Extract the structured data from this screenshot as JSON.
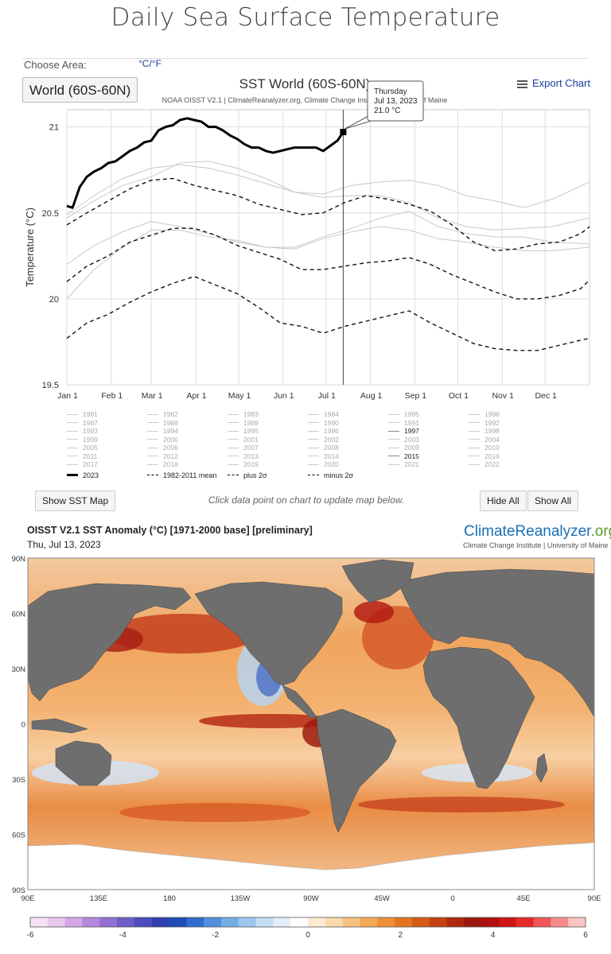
{
  "page": {
    "title": "Daily Sea Surface Temperature"
  },
  "controls": {
    "choose_area_label": "Choose Area:",
    "unit_toggle": "°C/°F",
    "area_button": "World (60S-60N)",
    "export_label": "Export Chart",
    "show_map_button": "Show SST Map",
    "hint": "Click data point on chart to update map below.",
    "hide_all_button": "Hide All",
    "show_all_button": "Show All"
  },
  "colors": {
    "link": "#1a3d9e",
    "line_2023": "#000000",
    "line_other": "#c8c8c8",
    "grid": "#dddddd"
  },
  "chart_data": {
    "type": "line",
    "title": "SST World (60S-60N)",
    "subtitle": "NOAA OISST V2.1 | ClimateReanalyzer.org, Climate Change Institute, University of Maine",
    "ylabel": "Temperature (°C)",
    "xlabel": "",
    "ylim": [
      19.5,
      21.1
    ],
    "yticks": [
      "19.5",
      "20",
      "20.5",
      "21"
    ],
    "ytick_values": [
      19.5,
      20,
      20.5,
      21
    ],
    "x_unit": "day of year",
    "xlim": [
      1,
      366
    ],
    "xticks": [
      "Jan 1",
      "Feb 1",
      "Mar 1",
      "Apr 1",
      "May 1",
      "Jun 1",
      "Jul 1",
      "Aug 1",
      "Sep 1",
      "Oct 1",
      "Nov 1",
      "Dec 1"
    ],
    "xtick_days": [
      1,
      32,
      60,
      91,
      121,
      152,
      182,
      213,
      244,
      274,
      305,
      335
    ],
    "grid": true,
    "tooltip": {
      "day": "Thursday",
      "date": "Jul 13, 2023",
      "value": "21.0 °C",
      "x": 194,
      "y": 20.97
    },
    "series": [
      {
        "name": "2023",
        "style": "solid-bold",
        "x": [
          1,
          5,
          10,
          15,
          20,
          25,
          30,
          35,
          40,
          45,
          50,
          55,
          60,
          65,
          70,
          75,
          80,
          85,
          90,
          95,
          100,
          105,
          110,
          115,
          120,
          125,
          130,
          135,
          140,
          145,
          150,
          155,
          160,
          165,
          170,
          175,
          180,
          185,
          190,
          194
        ],
        "y": [
          20.54,
          20.53,
          20.65,
          20.71,
          20.74,
          20.76,
          20.79,
          20.8,
          20.83,
          20.86,
          20.88,
          20.91,
          20.92,
          20.98,
          21.0,
          21.01,
          21.04,
          21.05,
          21.04,
          21.03,
          21.0,
          21.0,
          20.98,
          20.95,
          20.93,
          20.9,
          20.88,
          20.88,
          20.86,
          20.85,
          20.86,
          20.87,
          20.88,
          20.88,
          20.88,
          20.88,
          20.86,
          20.89,
          20.92,
          20.97
        ]
      },
      {
        "name": "1982-2011 mean",
        "style": "dashed",
        "x": [
          1,
          15,
          30,
          45,
          60,
          75,
          90,
          105,
          120,
          135,
          150,
          165,
          180,
          195,
          210,
          225,
          240,
          255,
          270,
          285,
          300,
          315,
          330,
          345,
          360,
          366
        ],
        "y": [
          20.1,
          20.19,
          20.25,
          20.33,
          20.37,
          20.41,
          20.41,
          20.37,
          20.31,
          20.27,
          20.23,
          20.17,
          20.17,
          20.19,
          20.21,
          20.22,
          20.24,
          20.2,
          20.14,
          20.09,
          20.04,
          20.0,
          20.0,
          20.02,
          20.06,
          20.11
        ]
      },
      {
        "name": "plus 2σ",
        "style": "dashed",
        "x": [
          1,
          15,
          30,
          45,
          60,
          75,
          90,
          105,
          120,
          135,
          150,
          165,
          180,
          195,
          210,
          225,
          240,
          255,
          270,
          285,
          300,
          315,
          330,
          345,
          360,
          366
        ],
        "y": [
          20.43,
          20.5,
          20.57,
          20.64,
          20.69,
          20.7,
          20.66,
          20.63,
          20.6,
          20.55,
          20.52,
          20.49,
          20.5,
          20.56,
          20.6,
          20.58,
          20.55,
          20.51,
          20.43,
          20.33,
          20.28,
          20.29,
          20.32,
          20.33,
          20.38,
          20.42
        ]
      },
      {
        "name": "minus 2σ",
        "style": "dashed",
        "x": [
          1,
          15,
          30,
          45,
          60,
          75,
          90,
          105,
          120,
          135,
          150,
          165,
          180,
          195,
          210,
          225,
          240,
          255,
          270,
          285,
          300,
          315,
          330,
          345,
          360,
          366
        ],
        "y": [
          19.77,
          19.86,
          19.91,
          19.98,
          20.04,
          20.09,
          20.13,
          20.08,
          20.03,
          19.95,
          19.86,
          19.84,
          19.8,
          19.84,
          19.87,
          19.9,
          19.93,
          19.86,
          19.8,
          19.74,
          19.71,
          19.7,
          19.7,
          19.73,
          19.76,
          19.77
        ]
      },
      {
        "name": "1997",
        "style": "thin-gray",
        "x": [
          1,
          20,
          40,
          60,
          80,
          100,
          120,
          140,
          160,
          180,
          200,
          220,
          240,
          260,
          280,
          300,
          320,
          340,
          366
        ],
        "y": [
          20.0,
          20.17,
          20.3,
          20.4,
          20.4,
          20.36,
          20.34,
          20.3,
          20.29,
          20.35,
          20.39,
          20.42,
          20.4,
          20.35,
          20.33,
          20.3,
          20.28,
          20.28,
          20.3
        ]
      },
      {
        "name": "2015",
        "style": "thin-gray",
        "x": [
          1,
          20,
          40,
          60,
          80,
          100,
          120,
          140,
          160,
          180,
          200,
          220,
          240,
          260,
          280,
          300,
          320,
          340,
          366
        ],
        "y": [
          20.2,
          20.31,
          20.39,
          20.45,
          20.42,
          20.38,
          20.33,
          20.3,
          20.3,
          20.36,
          20.41,
          20.47,
          20.51,
          20.42,
          20.38,
          20.36,
          20.36,
          20.33,
          20.32
        ]
      },
      {
        "name": "2016",
        "style": "thin-gray",
        "x": [
          1,
          20,
          40,
          60,
          80,
          100,
          120,
          140,
          160,
          180,
          200,
          220,
          240,
          260,
          280,
          300,
          320,
          340,
          366
        ],
        "y": [
          20.49,
          20.6,
          20.7,
          20.76,
          20.78,
          20.76,
          20.72,
          20.67,
          20.62,
          20.59,
          20.6,
          20.6,
          20.56,
          20.47,
          20.42,
          20.4,
          20.41,
          20.42,
          20.47
        ]
      },
      {
        "name": "2022",
        "style": "thin-gray",
        "x": [
          1,
          20,
          40,
          60,
          80,
          100,
          120,
          140,
          160,
          180,
          200,
          220,
          240,
          260,
          280,
          300,
          320,
          340,
          366
        ],
        "y": [
          20.47,
          20.57,
          20.66,
          20.71,
          20.79,
          20.8,
          20.76,
          20.7,
          20.62,
          20.61,
          20.66,
          20.68,
          20.69,
          20.66,
          20.6,
          20.57,
          20.53,
          20.58,
          20.68
        ]
      }
    ]
  },
  "legend": {
    "years": [
      "1981",
      "1982",
      "1983",
      "1984",
      "1985",
      "1986",
      "1987",
      "1988",
      "1989",
      "1990",
      "1991",
      "1992",
      "1993",
      "1994",
      "1995",
      "1996",
      "1997",
      "1998",
      "1999",
      "2000",
      "2001",
      "2002",
      "2003",
      "2004",
      "2005",
      "2006",
      "2007",
      "2008",
      "2009",
      "2010",
      "2011",
      "2012",
      "2013",
      "2014",
      "2015",
      "2016",
      "2017",
      "2018",
      "2019",
      "2020",
      "2021",
      "2022"
    ],
    "active_years": [
      "1997",
      "2015"
    ],
    "main": [
      "2023",
      "1982-2011 mean",
      "plus 2σ",
      "minus 2σ"
    ]
  },
  "map": {
    "title": "OISST V2.1 SST Anomaly (°C) [1971-2000 base] [preliminary]",
    "date": "Thu, Jul 13, 2023",
    "logo_main": "ClimateReanalyzer",
    "logo_suffix": ".org",
    "logo_sub": "Climate Change Institute | University of Maine",
    "lat_labels": [
      "90N",
      "60N",
      "30N",
      "0",
      "30S",
      "60S",
      "90S"
    ],
    "lon_labels": [
      "90E",
      "135E",
      "180",
      "135W",
      "90W",
      "45W",
      "0",
      "45E",
      "90E"
    ],
    "colorbar": {
      "ticks": [
        "-6",
        "-4",
        "-2",
        "0",
        "2",
        "4",
        "6"
      ],
      "colors": [
        "#f6e2f4",
        "#e9c8ee",
        "#d4a6e6",
        "#b688dc",
        "#9370d2",
        "#6f5cc8",
        "#4d4cbe",
        "#2f40b0",
        "#1f4db8",
        "#2f6ccc",
        "#4f8fdc",
        "#74aee6",
        "#9dc7ef",
        "#c3ddf5",
        "#e4eef8",
        "#ffffff",
        "#fdebd2",
        "#fbd8a9",
        "#f8c17d",
        "#f4a957",
        "#ee8f36",
        "#e4741f",
        "#d55a16",
        "#c34111",
        "#ad2a0e",
        "#9a170c",
        "#b0100f",
        "#cf1414",
        "#e62a2a",
        "#f25555",
        "#f78b8b",
        "#fbc3c3"
      ]
    }
  }
}
